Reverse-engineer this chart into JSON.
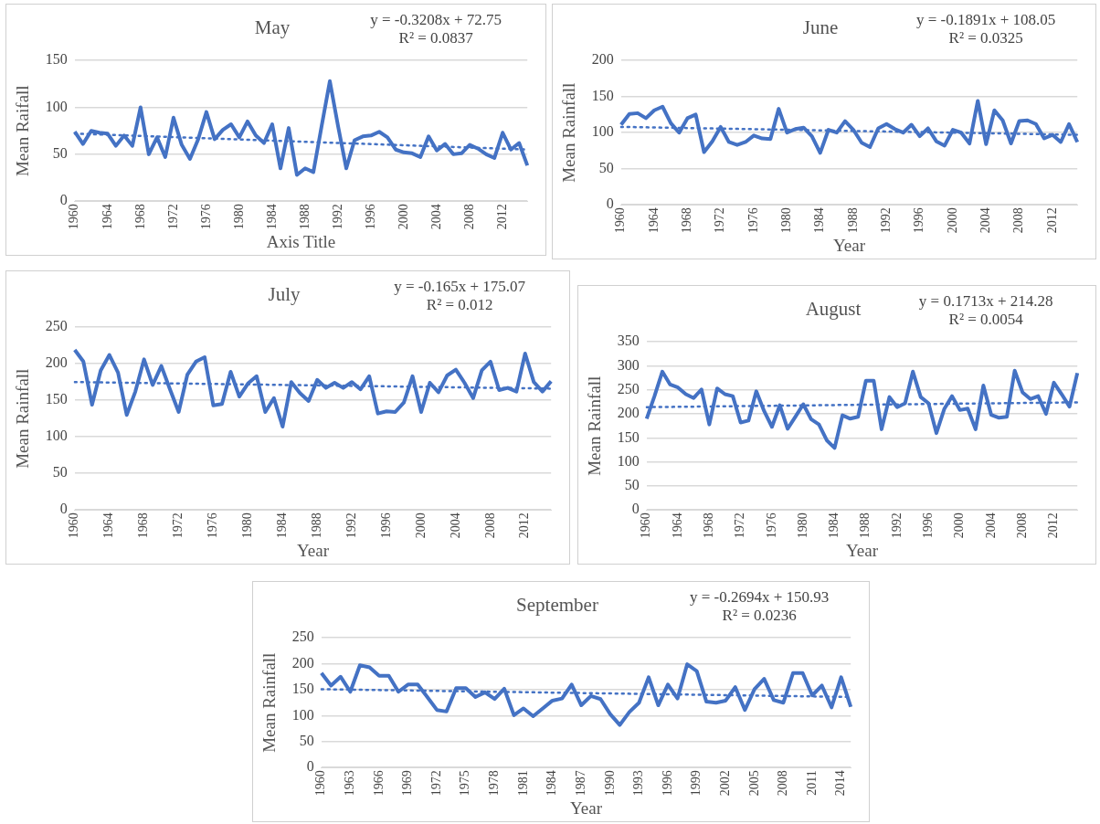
{
  "chart_data": [
    {
      "type": "line",
      "title": "May",
      "xlabel": "Axis Title",
      "ylabel": "Mean Raifall",
      "annotations": [
        "y = -0.3208x + 72.75",
        "R² = 0.0837"
      ],
      "grid": "y",
      "legend": false,
      "marker": "none",
      "categories": [
        "1960",
        null,
        null,
        null,
        "1964",
        null,
        null,
        null,
        "1968",
        null,
        null,
        null,
        "1972",
        null,
        null,
        null,
        "1976",
        null,
        null,
        null,
        "1980",
        null,
        null,
        null,
        "1984",
        null,
        null,
        null,
        "1988",
        null,
        null,
        null,
        "1992",
        null,
        null,
        null,
        "1996",
        null,
        null,
        null,
        "2000",
        null,
        null,
        null,
        "2004",
        null,
        null,
        null,
        "2008",
        null,
        null,
        null,
        "2012",
        null,
        null,
        null
      ],
      "ylim": [
        0,
        150
      ],
      "yticks": [
        0,
        50,
        100,
        150
      ],
      "series": [
        {
          "type": "line",
          "color": "#4472c4",
          "line_style": "solid",
          "values": [
            74,
            61,
            75,
            73,
            72,
            59,
            70,
            59,
            100,
            50,
            68,
            47,
            89,
            60,
            45,
            66,
            95,
            66,
            76,
            82,
            68,
            85,
            70,
            62,
            82,
            35,
            78,
            28,
            35,
            31,
            80,
            128,
            80,
            35,
            65,
            69,
            70,
            74,
            68,
            55,
            52,
            51,
            47,
            69,
            54,
            61,
            50,
            51,
            60,
            56,
            50,
            46,
            73,
            55,
            62,
            38
          ]
        },
        {
          "type": "line",
          "color": "#4472c4",
          "line_style": "dotted",
          "values": [
            72,
            null,
            null,
            null,
            null,
            null,
            null,
            null,
            null,
            null,
            null,
            null,
            null,
            null,
            null,
            null,
            null,
            null,
            null,
            null,
            null,
            null,
            null,
            null,
            null,
            null,
            null,
            null,
            null,
            null,
            null,
            null,
            null,
            null,
            null,
            null,
            null,
            null,
            null,
            null,
            null,
            null,
            null,
            null,
            null,
            null,
            null,
            null,
            null,
            null,
            null,
            null,
            null,
            null,
            null,
            55
          ]
        }
      ]
    },
    {
      "type": "line",
      "title": "June",
      "xlabel": "Year",
      "ylabel": "Mean Rainfall",
      "annotations": [
        "y = -0.1891x + 108.05",
        "R² = 0.0325"
      ],
      "grid": "y",
      "legend": false,
      "marker": "none",
      "categories": [
        "1960",
        null,
        null,
        null,
        "1964",
        null,
        null,
        null,
        "1968",
        null,
        null,
        null,
        "1972",
        null,
        null,
        null,
        "1976",
        null,
        null,
        null,
        "1980",
        null,
        null,
        null,
        "1984",
        null,
        null,
        null,
        "1988",
        null,
        null,
        null,
        "1992",
        null,
        null,
        null,
        "1996",
        null,
        null,
        null,
        "2000",
        null,
        null,
        null,
        "2004",
        null,
        null,
        null,
        "2008",
        null,
        null,
        null,
        "2012",
        null,
        null,
        null
      ],
      "ylim": [
        0,
        200
      ],
      "yticks": [
        0,
        50,
        100,
        150,
        200
      ],
      "series": [
        {
          "type": "line",
          "color": "#4472c4",
          "line_style": "solid",
          "values": [
            111,
            126,
            127,
            120,
            131,
            136,
            113,
            100,
            120,
            125,
            73,
            88,
            108,
            87,
            83,
            87,
            96,
            92,
            91,
            133,
            100,
            105,
            107,
            95,
            72,
            104,
            100,
            116,
            104,
            86,
            80,
            106,
            112,
            105,
            100,
            111,
            95,
            106,
            88,
            82,
            104,
            100,
            85,
            144,
            84,
            131,
            117,
            85,
            116,
            117,
            112,
            92,
            97,
            87,
            112,
            87
          ]
        },
        {
          "type": "line",
          "color": "#4472c4",
          "line_style": "dotted",
          "values": [
            108,
            null,
            null,
            null,
            null,
            null,
            null,
            null,
            null,
            null,
            null,
            null,
            null,
            null,
            null,
            null,
            null,
            null,
            null,
            null,
            null,
            null,
            null,
            null,
            null,
            null,
            null,
            null,
            null,
            null,
            null,
            null,
            null,
            null,
            null,
            null,
            null,
            null,
            null,
            null,
            null,
            null,
            null,
            null,
            null,
            null,
            null,
            null,
            null,
            null,
            null,
            null,
            null,
            null,
            null,
            97
          ]
        }
      ]
    },
    {
      "type": "line",
      "title": "July",
      "xlabel": "Year",
      "ylabel": "Mean Rainfall",
      "annotations": [
        "y = -0.165x + 175.07",
        "R² = 0.012"
      ],
      "grid": "y",
      "legend": false,
      "marker": "none",
      "categories": [
        "1960",
        null,
        null,
        null,
        "1964",
        null,
        null,
        null,
        "1968",
        null,
        null,
        null,
        "1972",
        null,
        null,
        null,
        "1976",
        null,
        null,
        null,
        "1980",
        null,
        null,
        null,
        "1984",
        null,
        null,
        null,
        "1988",
        null,
        null,
        null,
        "1992",
        null,
        null,
        null,
        "1996",
        null,
        null,
        null,
        "2000",
        null,
        null,
        null,
        "2004",
        null,
        null,
        null,
        "2008",
        null,
        null,
        null,
        "2012",
        null,
        null,
        null
      ],
      "ylim": [
        0,
        250
      ],
      "yticks": [
        0,
        50,
        100,
        150,
        200,
        250
      ],
      "series": [
        {
          "type": "line",
          "color": "#4472c4",
          "line_style": "solid",
          "values": [
            219,
            203,
            144,
            191,
            212,
            188,
            130,
            162,
            206,
            171,
            197,
            165,
            134,
            185,
            203,
            209,
            143,
            145,
            189,
            155,
            173,
            183,
            134,
            153,
            114,
            175,
            160,
            149,
            178,
            167,
            174,
            167,
            175,
            165,
            183,
            132,
            135,
            134,
            147,
            183,
            134,
            174,
            161,
            184,
            192,
            174,
            153,
            191,
            203,
            164,
            167,
            162,
            214,
            175,
            162,
            176
          ]
        },
        {
          "type": "line",
          "color": "#4472c4",
          "line_style": "dotted",
          "values": [
            175,
            null,
            null,
            null,
            null,
            null,
            null,
            null,
            null,
            null,
            null,
            null,
            null,
            null,
            null,
            null,
            null,
            null,
            null,
            null,
            null,
            null,
            null,
            null,
            null,
            null,
            null,
            null,
            null,
            null,
            null,
            null,
            null,
            null,
            null,
            null,
            null,
            null,
            null,
            null,
            null,
            null,
            null,
            null,
            null,
            null,
            null,
            null,
            null,
            null,
            null,
            null,
            null,
            null,
            null,
            166
          ]
        }
      ]
    },
    {
      "type": "line",
      "title": "August",
      "xlabel": "Year",
      "ylabel": "Mean Rainfall",
      "annotations": [
        "y = 0.1713x + 214.28",
        "R² = 0.0054"
      ],
      "grid": "y",
      "legend": false,
      "marker": "none",
      "categories": [
        "1960",
        null,
        null,
        null,
        "1964",
        null,
        null,
        null,
        "1968",
        null,
        null,
        null,
        "1972",
        null,
        null,
        null,
        "1976",
        null,
        null,
        null,
        "1980",
        null,
        null,
        null,
        "1984",
        null,
        null,
        null,
        "1988",
        null,
        null,
        null,
        "1992",
        null,
        null,
        null,
        "1996",
        null,
        null,
        null,
        "2000",
        null,
        null,
        null,
        "2004",
        null,
        null,
        null,
        "2008",
        null,
        null,
        null,
        "2012",
        null,
        null,
        null
      ],
      "ylim": [
        0,
        350
      ],
      "yticks": [
        0,
        50,
        100,
        150,
        200,
        250,
        300,
        350
      ],
      "series": [
        {
          "type": "line",
          "color": "#4472c4",
          "line_style": "solid",
          "values": [
            190,
            237,
            288,
            261,
            255,
            241,
            233,
            251,
            178,
            253,
            241,
            237,
            182,
            186,
            247,
            206,
            173,
            218,
            169,
            194,
            220,
            189,
            178,
            145,
            129,
            197,
            190,
            194,
            269,
            269,
            168,
            235,
            214,
            222,
            288,
            235,
            222,
            160,
            210,
            237,
            208,
            211,
            168,
            259,
            198,
            192,
            194,
            290,
            245,
            231,
            237,
            200,
            265,
            241,
            215,
            285
          ]
        },
        {
          "type": "line",
          "color": "#4472c4",
          "line_style": "dotted",
          "values": [
            214,
            null,
            null,
            null,
            null,
            null,
            null,
            null,
            null,
            null,
            null,
            null,
            null,
            null,
            null,
            null,
            null,
            null,
            null,
            null,
            null,
            null,
            null,
            null,
            null,
            null,
            null,
            null,
            null,
            null,
            null,
            null,
            null,
            null,
            null,
            null,
            null,
            null,
            null,
            null,
            null,
            null,
            null,
            null,
            null,
            null,
            null,
            null,
            null,
            null,
            null,
            null,
            null,
            null,
            null,
            224
          ]
        }
      ]
    },
    {
      "type": "line",
      "title": "September",
      "xlabel": "Year",
      "ylabel": "Mean Rainfall",
      "annotations": [
        "y = -0.2694x + 150.93",
        "R² = 0.0236"
      ],
      "grid": "y",
      "legend": false,
      "marker": "none",
      "categories": [
        "1960",
        null,
        null,
        "1963",
        null,
        null,
        "1966",
        null,
        null,
        "1969",
        null,
        null,
        "1972",
        null,
        null,
        "1975",
        null,
        null,
        "1978",
        null,
        null,
        "1981",
        null,
        null,
        "1984",
        null,
        null,
        "1987",
        null,
        null,
        "1990",
        null,
        null,
        "1993",
        null,
        null,
        "1996",
        null,
        null,
        "1999",
        null,
        null,
        "2002",
        null,
        null,
        "2005",
        null,
        null,
        "2008",
        null,
        null,
        "2011",
        null,
        null,
        "2014",
        null
      ],
      "ylim": [
        0,
        250
      ],
      "yticks": [
        0,
        50,
        100,
        150,
        200,
        250
      ],
      "series": [
        {
          "type": "line",
          "color": "#4472c4",
          "line_style": "solid",
          "values": [
            182,
            158,
            175,
            146,
            197,
            193,
            177,
            177,
            146,
            160,
            160,
            136,
            111,
            108,
            153,
            153,
            136,
            145,
            132,
            152,
            101,
            114,
            99,
            114,
            129,
            133,
            160,
            120,
            138,
            132,
            103,
            82,
            107,
            125,
            174,
            120,
            160,
            133,
            199,
            186,
            127,
            125,
            129,
            155,
            111,
            151,
            171,
            130,
            125,
            182,
            182,
            139,
            158,
            116,
            174,
            117
          ]
        },
        {
          "type": "line",
          "color": "#4472c4",
          "line_style": "dotted",
          "values": [
            151,
            null,
            null,
            null,
            null,
            null,
            null,
            null,
            null,
            null,
            null,
            null,
            null,
            null,
            null,
            null,
            null,
            null,
            null,
            null,
            null,
            null,
            null,
            null,
            null,
            null,
            null,
            null,
            null,
            null,
            null,
            null,
            null,
            null,
            null,
            null,
            null,
            null,
            null,
            null,
            null,
            null,
            null,
            null,
            null,
            null,
            null,
            null,
            null,
            null,
            null,
            null,
            null,
            null,
            null,
            136
          ]
        }
      ]
    }
  ]
}
